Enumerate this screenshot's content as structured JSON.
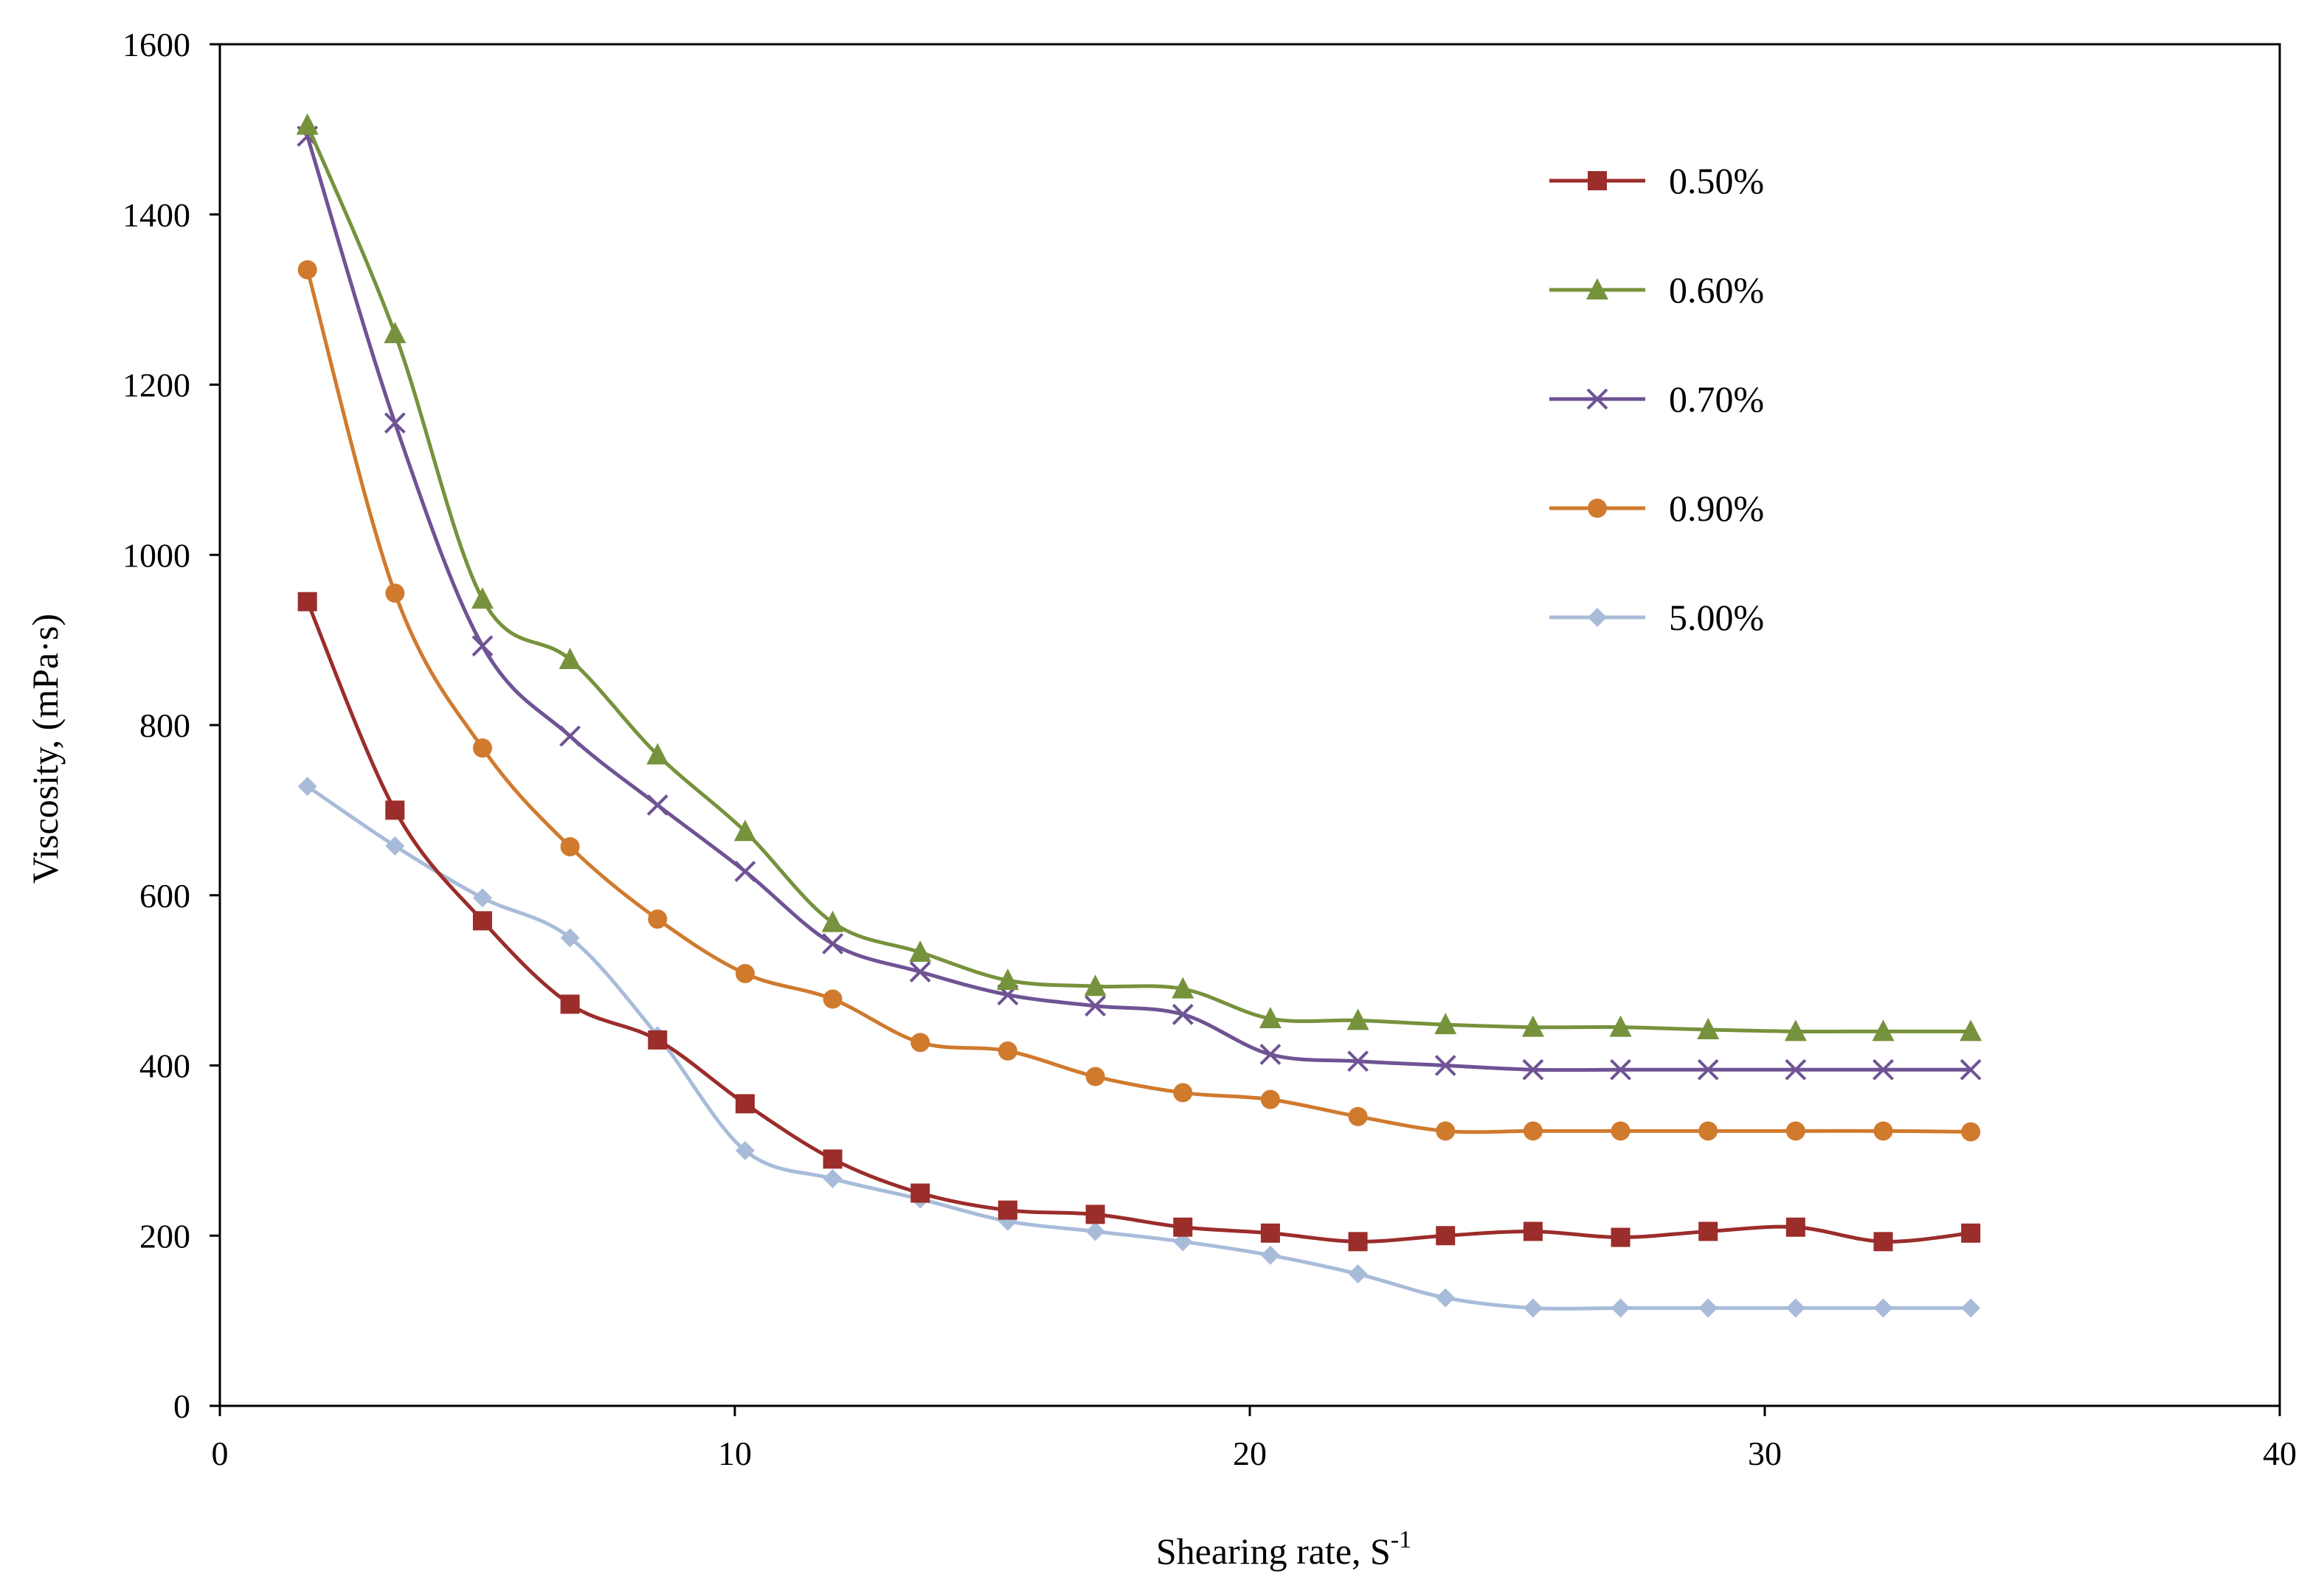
{
  "chart_data": {
    "type": "line",
    "title": "",
    "xlabel": "Shearing rate, S",
    "xlabel_sup": "-1",
    "ylabel": "Viscosity, (mPa·s)",
    "xlim": [
      0,
      40
    ],
    "ylim": [
      0,
      1600
    ],
    "xticks": [
      0,
      10,
      20,
      30,
      40
    ],
    "yticks": [
      0,
      200,
      400,
      600,
      800,
      1000,
      1200,
      1400,
      1600
    ],
    "grid": false,
    "legend_position": "top-right",
    "x": [
      1.7,
      3.4,
      5.1,
      6.8,
      8.5,
      10.2,
      11.9,
      13.6,
      15.3,
      17.0,
      18.7,
      20.4,
      22.1,
      23.8,
      25.5,
      27.2,
      28.9,
      30.6,
      32.3,
      34.0
    ],
    "series": [
      {
        "name": "0.50%",
        "color": "#9b2d2a",
        "marker": "square",
        "values": [
          945,
          700,
          570,
          472,
          430,
          355,
          290,
          250,
          230,
          225,
          210,
          203,
          193,
          200,
          205,
          198,
          205,
          210,
          193,
          203
        ]
      },
      {
        "name": "0.60%",
        "color": "#76923c",
        "marker": "triangle",
        "values": [
          1505,
          1260,
          948,
          877,
          765,
          675,
          568,
          533,
          500,
          493,
          490,
          455,
          453,
          448,
          445,
          445,
          442,
          440,
          440,
          440
        ]
      },
      {
        "name": "0.70%",
        "color": "#6f5394",
        "marker": "x",
        "values": [
          1492,
          1155,
          893,
          787,
          706,
          628,
          543,
          510,
          483,
          470,
          460,
          413,
          405,
          400,
          395,
          395,
          395,
          395,
          395,
          395
        ]
      },
      {
        "name": "0.90%",
        "color": "#d07a2e",
        "marker": "circle",
        "values": [
          1335,
          955,
          773,
          657,
          572,
          508,
          478,
          427,
          417,
          387,
          368,
          360,
          340,
          323,
          323,
          323,
          323,
          323,
          323,
          322
        ]
      },
      {
        "name": "5.00%",
        "color": "#a8bcd9",
        "marker": "diamond",
        "values": [
          728,
          658,
          597,
          550,
          435,
          300,
          267,
          243,
          217,
          205,
          193,
          177,
          155,
          127,
          115,
          115,
          115,
          115,
          115,
          115
        ]
      }
    ]
  }
}
